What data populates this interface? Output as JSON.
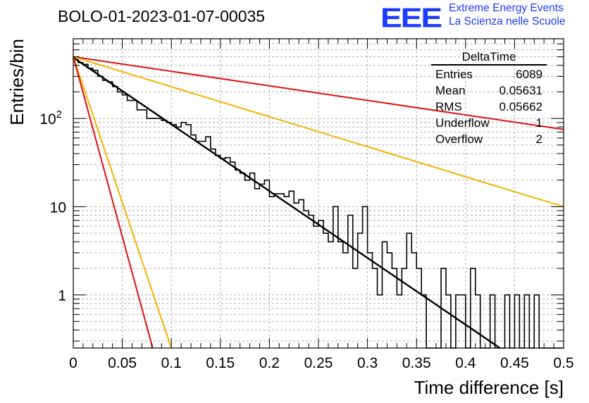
{
  "header": {
    "title": "BOLO-01-2023-01-07-00035",
    "logo": "EEE",
    "logo_line1": "Extreme Energy Events",
    "logo_line2": "La Scienza nelle Scuole"
  },
  "stats": {
    "title": "DeltaTime",
    "rows": [
      {
        "label": "Entries",
        "value": "6089"
      },
      {
        "label": "Mean",
        "value": "0.05631"
      },
      {
        "label": "RMS",
        "value": "0.05662"
      },
      {
        "label": "Underflow",
        "value": "1"
      },
      {
        "label": "Overflow",
        "value": "2"
      }
    ]
  },
  "chart_data": {
    "type": "line",
    "xlabel": "Time difference [s]",
    "ylabel": "Entries/bin",
    "xlim": [
      0,
      0.5
    ],
    "ylim": [
      0.25,
      800
    ],
    "yscale": "log",
    "grid": true,
    "x_ticks": [
      "0",
      "0.05",
      "0.1",
      "0.15",
      "0.2",
      "0.25",
      "0.3",
      "0.35",
      "0.4",
      "0.45",
      "0.5"
    ],
    "y_ticks": [
      "1",
      "10",
      "10^2"
    ],
    "histogram": {
      "bin_width": 0.005,
      "values": [
        490,
        430,
        410,
        370,
        350,
        300,
        270,
        260,
        230,
        200,
        185,
        160,
        160,
        125,
        125,
        100,
        100,
        100,
        95,
        90,
        85,
        80,
        90,
        85,
        65,
        55,
        55,
        62,
        45,
        38,
        35,
        36,
        32,
        26,
        24,
        20,
        24,
        16,
        18,
        20,
        13,
        14,
        14,
        13,
        15,
        11,
        12,
        9,
        8,
        6,
        7,
        5,
        4,
        10,
        4,
        3,
        8,
        2,
        5,
        10,
        3,
        2,
        1,
        4,
        3,
        2,
        1,
        2,
        5,
        3,
        2,
        1,
        0,
        0,
        0,
        2,
        1,
        0,
        1,
        1,
        0,
        2,
        1,
        0,
        0,
        1,
        0,
        0,
        1,
        0,
        1,
        0,
        1,
        0,
        1,
        0,
        0,
        0,
        0,
        0
      ],
      "color": "#000000"
    },
    "series": [
      {
        "values": [
          [
            0,
            500
          ],
          [
            0.5,
            75
          ]
        ],
        "color": "#e01010"
      },
      {
        "values": [
          [
            0,
            500
          ],
          [
            0.5,
            10
          ]
        ],
        "color": "#f5b400"
      },
      {
        "values": [
          [
            0,
            490
          ],
          [
            0.435,
            0.25
          ]
        ],
        "color": "#000000"
      },
      {
        "values": [
          [
            0,
            500
          ],
          [
            0.1,
            0.25
          ]
        ],
        "color": "#f5b400"
      },
      {
        "values": [
          [
            0,
            500
          ],
          [
            0.081,
            0.25
          ]
        ],
        "color": "#e01010"
      }
    ]
  }
}
